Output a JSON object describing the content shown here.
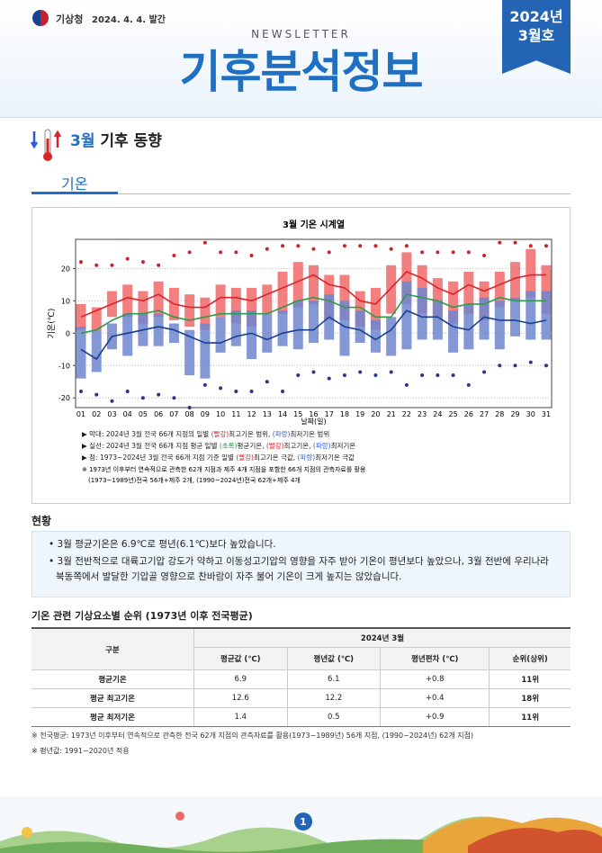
{
  "header": {
    "agency": "기상청",
    "date": "2024. 4. 4. 발간",
    "newsletter": "NEWSLETTER",
    "title": "기후분석정보",
    "issue_year": "2024년",
    "issue_month": "3월호"
  },
  "section": {
    "month": "3월",
    "title": "기후 동향"
  },
  "subsection": "기온",
  "chart_data": {
    "type": "range_bar",
    "title": "3월 기온 시계열",
    "ylabel": "기온(℃)",
    "xlabel": "날짜(일)",
    "categories": [
      "01",
      "02",
      "03",
      "04",
      "05",
      "06",
      "07",
      "08",
      "09",
      "10",
      "11",
      "12",
      "13",
      "14",
      "15",
      "16",
      "17",
      "18",
      "19",
      "20",
      "21",
      "22",
      "23",
      "24",
      "25",
      "26",
      "27",
      "28",
      "29",
      "30",
      "31"
    ],
    "ylim": [
      -23,
      29
    ],
    "yticks": [
      -20,
      -10,
      0,
      10,
      20
    ],
    "grid": true,
    "bars": [
      {
        "color": "#f06a6a",
        "low": [
          1,
          1,
          5,
          5,
          3,
          5,
          4,
          2,
          1,
          5,
          3,
          2,
          6,
          6,
          8,
          9,
          4,
          4,
          2,
          1,
          6,
          9,
          6,
          5,
          3,
          6,
          4,
          8,
          10,
          11,
          6
        ],
        "high": [
          9,
          8,
          13,
          15,
          13,
          16,
          14,
          12,
          11,
          15,
          14,
          14,
          15,
          19,
          22,
          21,
          18,
          18,
          13,
          14,
          21,
          25,
          21,
          17,
          16,
          19,
          16,
          19,
          22,
          26,
          21
        ]
      },
      {
        "color": "#6f86cf",
        "low": [
          -14,
          -12,
          -5,
          -7,
          -4,
          -4,
          -3,
          -13,
          -14,
          -6,
          -4,
          -8,
          -6,
          -4,
          -5,
          -3,
          -2,
          -7,
          -3,
          -6,
          -7,
          -5,
          -2,
          -2,
          -6,
          -5,
          -2,
          -5,
          -1,
          -2,
          -2
        ],
        "high": [
          2,
          1,
          3,
          6,
          6,
          6,
          3,
          1,
          3,
          5,
          7,
          7,
          6,
          7,
          10,
          10,
          12,
          10,
          7,
          4,
          5,
          16,
          14,
          10,
          7,
          9,
          11,
          10,
          11,
          13,
          13
        ]
      }
    ],
    "lines": [
      {
        "color": "#2e9a4a",
        "values": [
          0,
          1,
          4,
          6,
          6,
          7,
          5,
          4,
          5,
          6,
          6,
          6,
          6,
          8,
          10,
          11,
          10,
          8,
          8,
          5,
          5,
          12,
          11,
          10,
          8,
          9,
          9,
          11,
          10,
          10,
          10
        ]
      },
      {
        "color": "#d9232a",
        "values": [
          5,
          7,
          9,
          11,
          10,
          12,
          9,
          8,
          8,
          11,
          11,
          10,
          12,
          14,
          16,
          18,
          15,
          14,
          10,
          9,
          14,
          19,
          17,
          14,
          12,
          15,
          13,
          15,
          17,
          18,
          18
        ]
      },
      {
        "color": "#1a3f8f",
        "values": [
          -5,
          -8,
          -1,
          0,
          1,
          2,
          1,
          -1,
          -3,
          -3,
          -1,
          0,
          -2,
          0,
          1,
          1,
          5,
          2,
          1,
          -2,
          1,
          7,
          5,
          5,
          2,
          1,
          5,
          4,
          4,
          3,
          4
        ]
      }
    ],
    "points": [
      {
        "color": "#c8252a",
        "values": [
          22,
          21,
          21,
          23,
          22,
          21,
          24,
          25,
          28,
          25,
          25,
          24,
          26,
          27,
          27,
          26,
          25,
          27,
          27,
          27,
          26,
          27,
          25,
          25,
          25,
          25,
          24,
          28,
          28,
          27,
          27
        ]
      },
      {
        "color": "#27378a",
        "values": [
          -18,
          -19,
          -21,
          -18,
          -20,
          -19,
          -20,
          -23,
          -16,
          -17,
          -18,
          -18,
          -15,
          -18,
          -13,
          -12,
          -14,
          -13,
          -12,
          -13,
          -12,
          -16,
          -13,
          -13,
          -13,
          -16,
          -12,
          -10,
          -10,
          -9,
          -10
        ]
      }
    ],
    "legend": [
      [
        {
          "text": "▶ 막대: 2024년 3월 전국 66개 지점의 일별 "
        },
        {
          "text": "(빨강)",
          "color": "#e8262b"
        },
        {
          "text": "최고기온 범위, "
        },
        {
          "text": "(파랑)",
          "color": "#2a5bd7"
        },
        {
          "text": "최저기온 범위"
        }
      ],
      [
        {
          "text": "▶ 실선: 2024년 3월 전국 66개 지점 평균 일별 "
        },
        {
          "text": "(초록)",
          "color": "#1a9a3a"
        },
        {
          "text": "평균기온, "
        },
        {
          "text": "(빨강)",
          "color": "#e8262b"
        },
        {
          "text": "최고기온, "
        },
        {
          "text": "(파랑)",
          "color": "#2a5bd7"
        },
        {
          "text": "최저기온"
        }
      ],
      [
        {
          "text": "▶ 점: 1973~2024년 3월 전국 66개 지점 기준 일별 "
        },
        {
          "text": "(빨강)",
          "color": "#e8262b"
        },
        {
          "text": "최고기온 극값, "
        },
        {
          "text": "(파랑)",
          "color": "#2a5bd7"
        },
        {
          "text": "최저기온 극값"
        }
      ]
    ],
    "notes": [
      "※ 1973년 이후부터 연속적으로 관측한 62개 지점과 제주 4개 지점을 포함한 66개 지점의 관측자료를 활용",
      "(1973~1989년)전국 56개+제주 2개, (1990~2024년)전국 62개+제주 4개"
    ]
  },
  "status": {
    "title": "현황",
    "bullets": [
      "3월 평균기온은 6.9℃로 평년(6.1℃)보다 높았습니다.",
      "3월 전반적으로 대륙고기압 강도가 약하고 이동성고기압의 영향을 자주 받아 기온이 평년보다 높았으나, 3월 전반에 우리나라 북동쪽에서 발달한 기압골 영향으로 찬바람이 자주 불어 기온이 크게 높지는 않았습니다."
    ]
  },
  "table": {
    "title": "기온 관련 기상요소별 순위 (1973년 이후 전국평균)",
    "corner": "구분",
    "group": "2024년 3월",
    "columns": [
      "평균값 (℃)",
      "평년값 (℃)",
      "평년편차 (℃)",
      "순위(상위)"
    ],
    "rows": [
      [
        "평균기온",
        "6.9",
        "6.1",
        "+0.8",
        "11위"
      ],
      [
        "평균 최고기온",
        "12.6",
        "12.2",
        "+0.4",
        "18위"
      ],
      [
        "평균 최저기온",
        "1.4",
        "0.5",
        "+0.9",
        "11위"
      ]
    ]
  },
  "footnotes": [
    "※ 전국평균: 1973년 이후부터 연속적으로 관측한 전국 62개 지점의 관측자료를 활용(1973~1989년) 56개 지점, (1990~2024년) 62개 지점)",
    "※ 평년값: 1991~2020년 적용"
  ],
  "page_number": "1"
}
